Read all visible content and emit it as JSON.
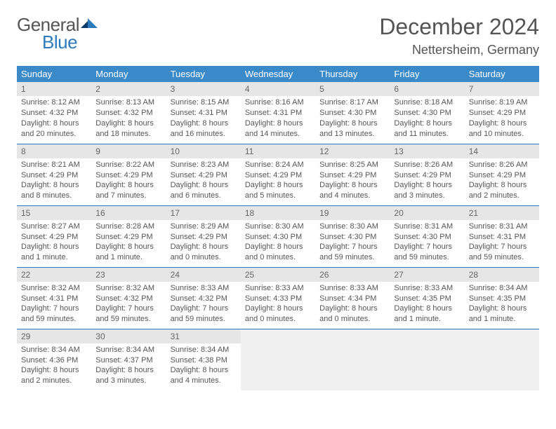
{
  "logo": {
    "word1": "General",
    "word2": "Blue"
  },
  "title": "December 2024",
  "location": "Nettersheim, Germany",
  "colors": {
    "header_bg": "#3a89c9",
    "header_fg": "#ffffff",
    "rule": "#2b7bbd",
    "daynum_bg": "#e6e6e6",
    "text": "#555555",
    "page_bg": "#ffffff"
  },
  "weekdays": [
    "Sunday",
    "Monday",
    "Tuesday",
    "Wednesday",
    "Thursday",
    "Friday",
    "Saturday"
  ],
  "weeks": [
    [
      {
        "n": "1",
        "sr": "Sunrise: 8:12 AM",
        "ss": "Sunset: 4:32 PM",
        "dl": "Daylight: 8 hours and 20 minutes."
      },
      {
        "n": "2",
        "sr": "Sunrise: 8:13 AM",
        "ss": "Sunset: 4:32 PM",
        "dl": "Daylight: 8 hours and 18 minutes."
      },
      {
        "n": "3",
        "sr": "Sunrise: 8:15 AM",
        "ss": "Sunset: 4:31 PM",
        "dl": "Daylight: 8 hours and 16 minutes."
      },
      {
        "n": "4",
        "sr": "Sunrise: 8:16 AM",
        "ss": "Sunset: 4:31 PM",
        "dl": "Daylight: 8 hours and 14 minutes."
      },
      {
        "n": "5",
        "sr": "Sunrise: 8:17 AM",
        "ss": "Sunset: 4:30 PM",
        "dl": "Daylight: 8 hours and 13 minutes."
      },
      {
        "n": "6",
        "sr": "Sunrise: 8:18 AM",
        "ss": "Sunset: 4:30 PM",
        "dl": "Daylight: 8 hours and 11 minutes."
      },
      {
        "n": "7",
        "sr": "Sunrise: 8:19 AM",
        "ss": "Sunset: 4:29 PM",
        "dl": "Daylight: 8 hours and 10 minutes."
      }
    ],
    [
      {
        "n": "8",
        "sr": "Sunrise: 8:21 AM",
        "ss": "Sunset: 4:29 PM",
        "dl": "Daylight: 8 hours and 8 minutes."
      },
      {
        "n": "9",
        "sr": "Sunrise: 8:22 AM",
        "ss": "Sunset: 4:29 PM",
        "dl": "Daylight: 8 hours and 7 minutes."
      },
      {
        "n": "10",
        "sr": "Sunrise: 8:23 AM",
        "ss": "Sunset: 4:29 PM",
        "dl": "Daylight: 8 hours and 6 minutes."
      },
      {
        "n": "11",
        "sr": "Sunrise: 8:24 AM",
        "ss": "Sunset: 4:29 PM",
        "dl": "Daylight: 8 hours and 5 minutes."
      },
      {
        "n": "12",
        "sr": "Sunrise: 8:25 AM",
        "ss": "Sunset: 4:29 PM",
        "dl": "Daylight: 8 hours and 4 minutes."
      },
      {
        "n": "13",
        "sr": "Sunrise: 8:26 AM",
        "ss": "Sunset: 4:29 PM",
        "dl": "Daylight: 8 hours and 3 minutes."
      },
      {
        "n": "14",
        "sr": "Sunrise: 8:26 AM",
        "ss": "Sunset: 4:29 PM",
        "dl": "Daylight: 8 hours and 2 minutes."
      }
    ],
    [
      {
        "n": "15",
        "sr": "Sunrise: 8:27 AM",
        "ss": "Sunset: 4:29 PM",
        "dl": "Daylight: 8 hours and 1 minute."
      },
      {
        "n": "16",
        "sr": "Sunrise: 8:28 AM",
        "ss": "Sunset: 4:29 PM",
        "dl": "Daylight: 8 hours and 1 minute."
      },
      {
        "n": "17",
        "sr": "Sunrise: 8:29 AM",
        "ss": "Sunset: 4:29 PM",
        "dl": "Daylight: 8 hours and 0 minutes."
      },
      {
        "n": "18",
        "sr": "Sunrise: 8:30 AM",
        "ss": "Sunset: 4:30 PM",
        "dl": "Daylight: 8 hours and 0 minutes."
      },
      {
        "n": "19",
        "sr": "Sunrise: 8:30 AM",
        "ss": "Sunset: 4:30 PM",
        "dl": "Daylight: 7 hours and 59 minutes."
      },
      {
        "n": "20",
        "sr": "Sunrise: 8:31 AM",
        "ss": "Sunset: 4:30 PM",
        "dl": "Daylight: 7 hours and 59 minutes."
      },
      {
        "n": "21",
        "sr": "Sunrise: 8:31 AM",
        "ss": "Sunset: 4:31 PM",
        "dl": "Daylight: 7 hours and 59 minutes."
      }
    ],
    [
      {
        "n": "22",
        "sr": "Sunrise: 8:32 AM",
        "ss": "Sunset: 4:31 PM",
        "dl": "Daylight: 7 hours and 59 minutes."
      },
      {
        "n": "23",
        "sr": "Sunrise: 8:32 AM",
        "ss": "Sunset: 4:32 PM",
        "dl": "Daylight: 7 hours and 59 minutes."
      },
      {
        "n": "24",
        "sr": "Sunrise: 8:33 AM",
        "ss": "Sunset: 4:32 PM",
        "dl": "Daylight: 7 hours and 59 minutes."
      },
      {
        "n": "25",
        "sr": "Sunrise: 8:33 AM",
        "ss": "Sunset: 4:33 PM",
        "dl": "Daylight: 8 hours and 0 minutes."
      },
      {
        "n": "26",
        "sr": "Sunrise: 8:33 AM",
        "ss": "Sunset: 4:34 PM",
        "dl": "Daylight: 8 hours and 0 minutes."
      },
      {
        "n": "27",
        "sr": "Sunrise: 8:33 AM",
        "ss": "Sunset: 4:35 PM",
        "dl": "Daylight: 8 hours and 1 minute."
      },
      {
        "n": "28",
        "sr": "Sunrise: 8:34 AM",
        "ss": "Sunset: 4:35 PM",
        "dl": "Daylight: 8 hours and 1 minute."
      }
    ],
    [
      {
        "n": "29",
        "sr": "Sunrise: 8:34 AM",
        "ss": "Sunset: 4:36 PM",
        "dl": "Daylight: 8 hours and 2 minutes."
      },
      {
        "n": "30",
        "sr": "Sunrise: 8:34 AM",
        "ss": "Sunset: 4:37 PM",
        "dl": "Daylight: 8 hours and 3 minutes."
      },
      {
        "n": "31",
        "sr": "Sunrise: 8:34 AM",
        "ss": "Sunset: 4:38 PM",
        "dl": "Daylight: 8 hours and 4 minutes."
      },
      {
        "empty": true
      },
      {
        "empty": true
      },
      {
        "empty": true
      },
      {
        "empty": true
      }
    ]
  ]
}
